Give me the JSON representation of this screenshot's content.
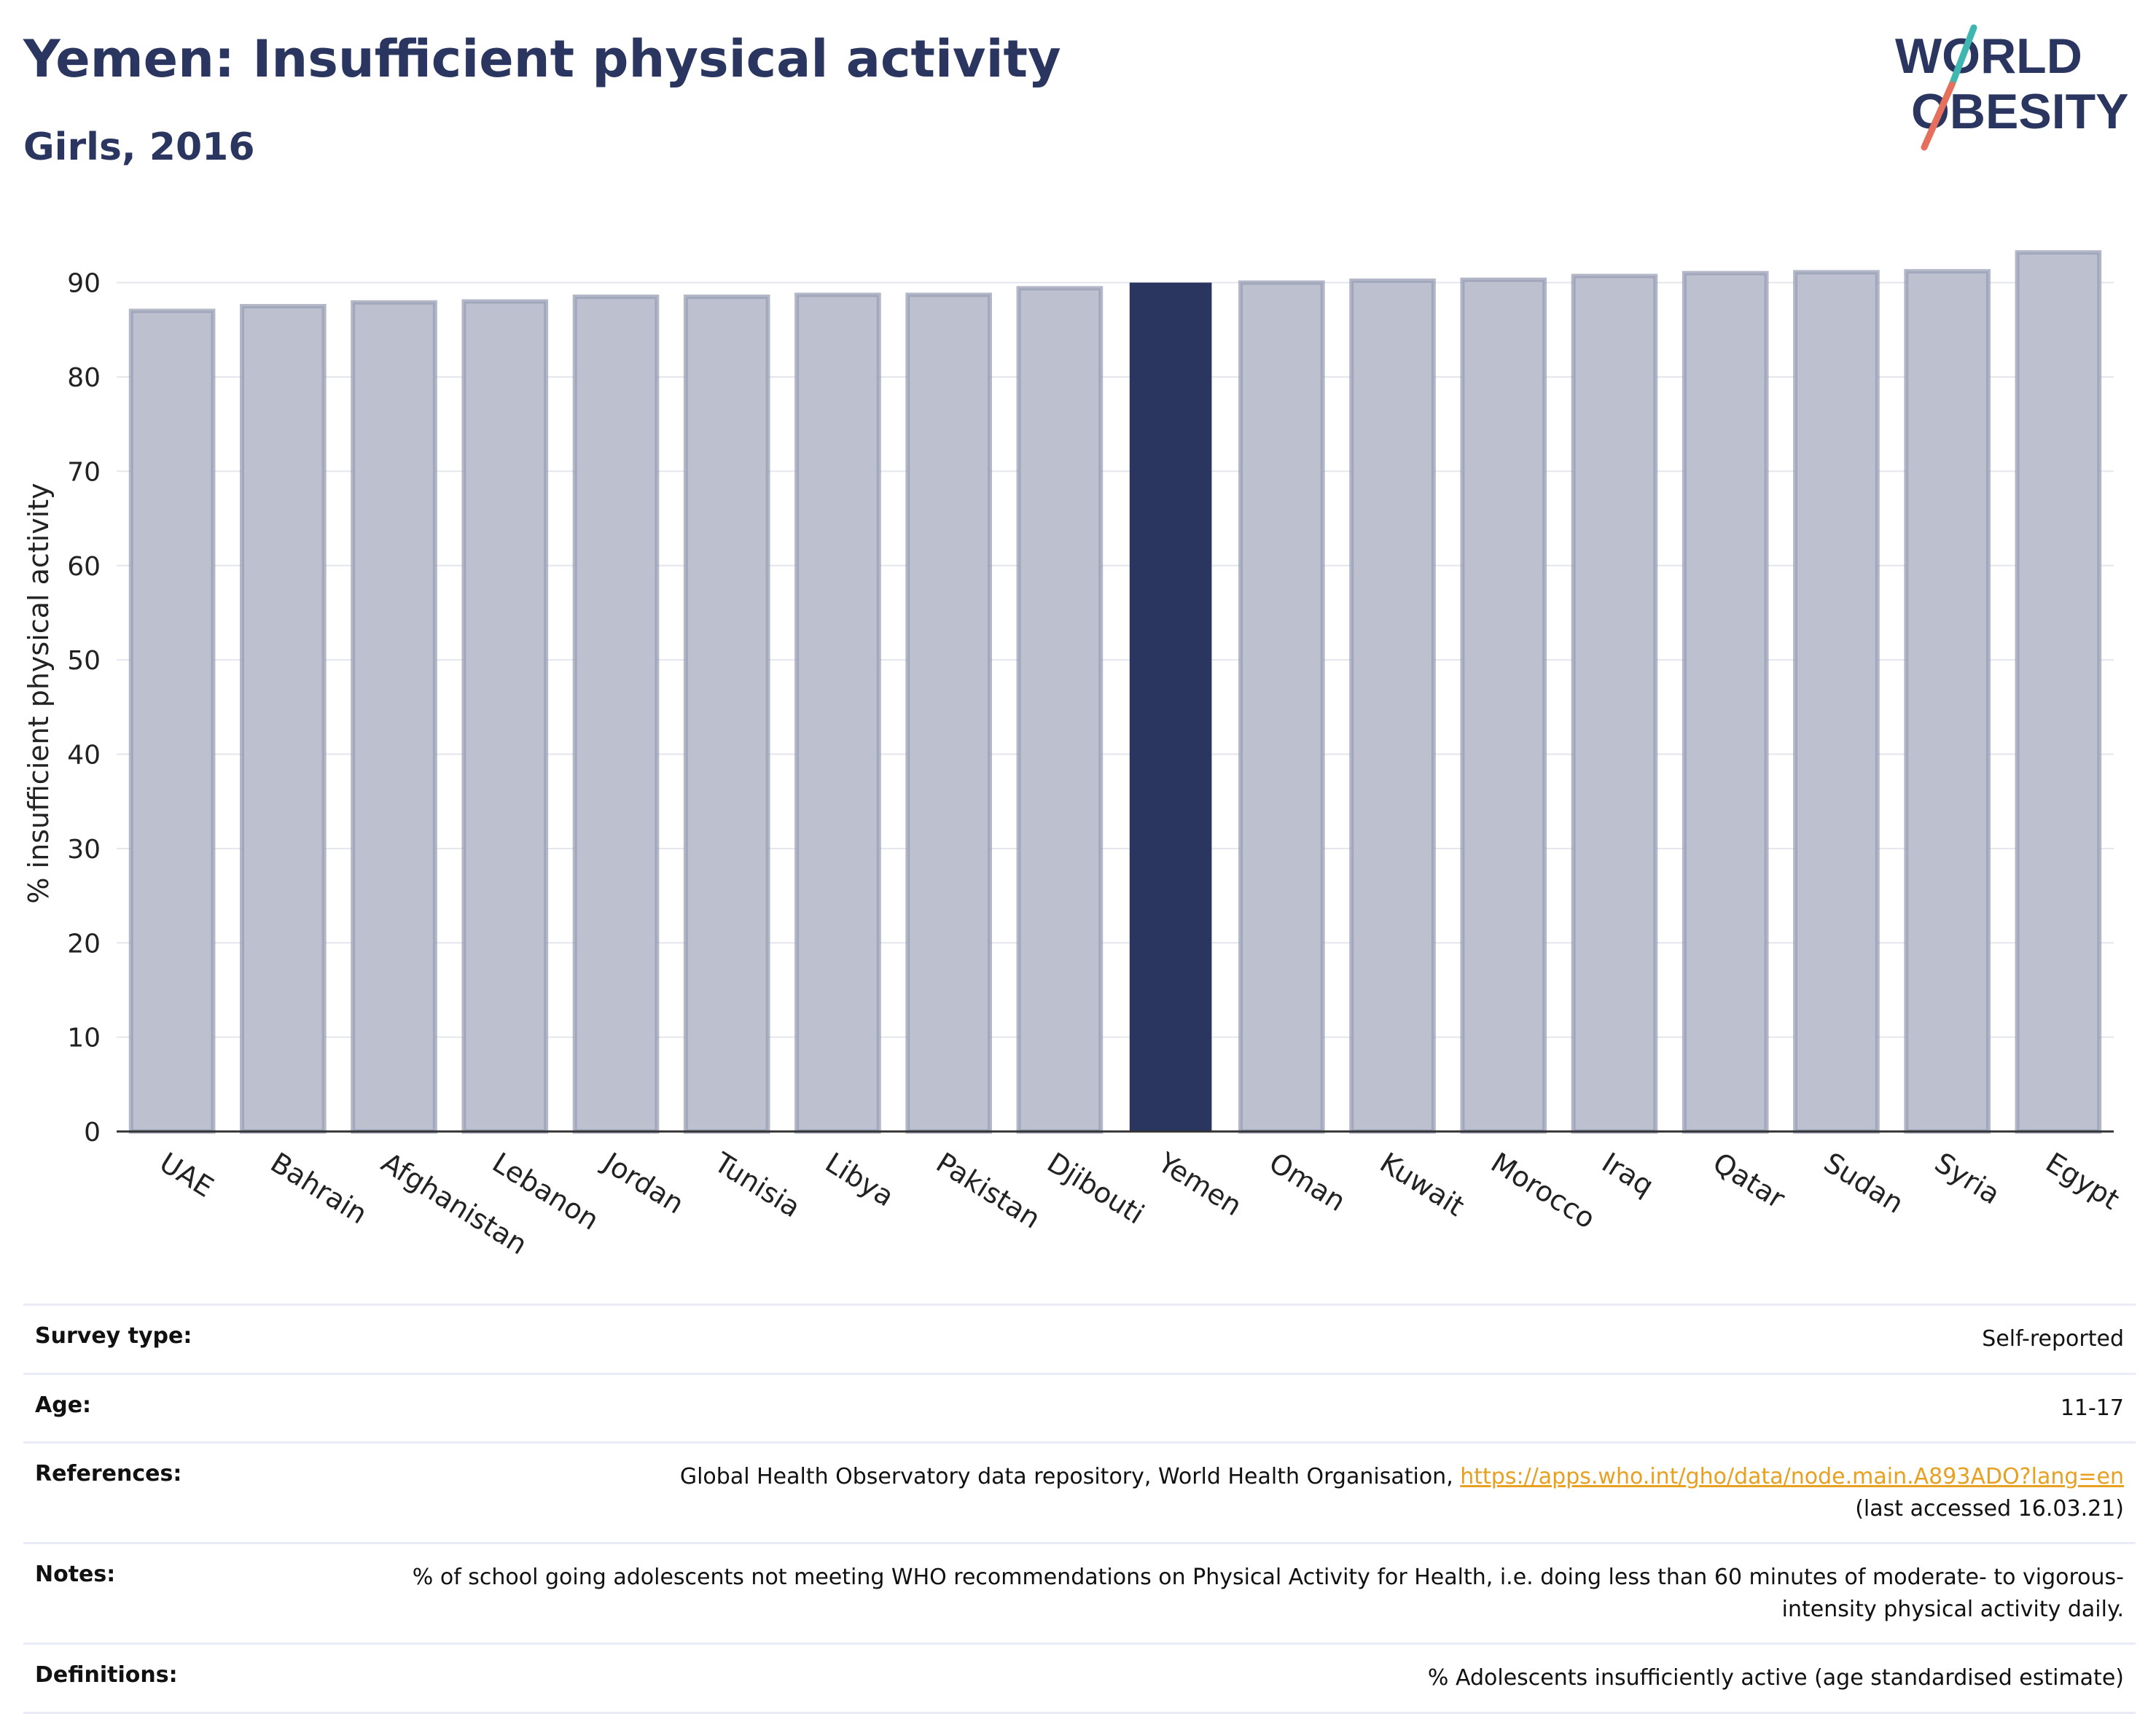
{
  "header": {
    "title": "Yemen: Insufficient physical activity",
    "subtitle": "Girls, 2016"
  },
  "logo": {
    "line1": "WORLD",
    "line2": "OBESITY"
  },
  "colors": {
    "highlight": "#2a3560",
    "bar": "#bdc1cf",
    "bar_stroke": "#9a9fb6",
    "accent_teal": "#3fb6b0",
    "accent_coral": "#e5705d",
    "link": "#e8a020"
  },
  "chart_data": {
    "type": "bar",
    "categories": [
      "UAE",
      "Bahrain",
      "Afghanistan",
      "Lebanon",
      "Jordan",
      "Tunisia",
      "Libya",
      "Pakistan",
      "Djibouti",
      "Yemen",
      "Oman",
      "Kuwait",
      "Morocco",
      "Iraq",
      "Qatar",
      "Sudan",
      "Syria",
      "Egypt"
    ],
    "values": [
      87.0,
      87.5,
      87.9,
      88.0,
      88.5,
      88.5,
      88.7,
      88.7,
      89.4,
      90.0,
      90.0,
      90.2,
      90.3,
      90.7,
      91.0,
      91.1,
      91.2,
      93.2
    ],
    "highlight": "Yemen",
    "ylabel": "% insufficient physical activity",
    "xlabel": "",
    "ylim": [
      0,
      96
    ],
    "yticks": [
      0,
      10,
      20,
      30,
      40,
      50,
      60,
      70,
      80,
      90
    ],
    "grid": true,
    "legend": "none"
  },
  "info": [
    {
      "label": "Survey type:",
      "value": "Self-reported"
    },
    {
      "label": "Age:",
      "value": "11-17"
    },
    {
      "label": "References:",
      "value": "Global Health Observatory data repository, World Health Organisation, ",
      "link": "https://apps.who.int/gho/data/node.main.A893ADO?lang=en",
      "suffix": "(last accessed 16.03.21)"
    },
    {
      "label": "Notes:",
      "value": "% of school going adolescents not meeting WHO recommendations on Physical Activity for Health, i.e. doing less than 60 minutes of moderate- to vigorous-intensity physical activity daily."
    },
    {
      "label": "Definitions:",
      "value": "% Adolescents insufficiently active (age standardised estimate)"
    }
  ]
}
